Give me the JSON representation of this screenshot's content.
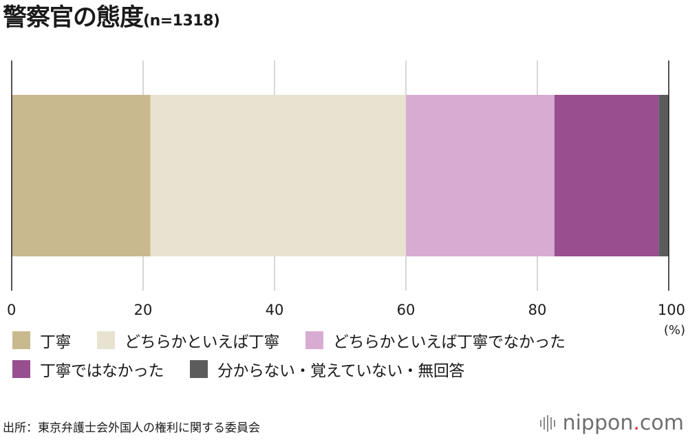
{
  "title": {
    "main": "警察官の態度",
    "n": "(n=1318)"
  },
  "chart_data": {
    "type": "bar",
    "orientation": "horizontal-stacked",
    "xlim": [
      0,
      100
    ],
    "x_ticks": [
      "0",
      "20",
      "40",
      "60",
      "80",
      "100"
    ],
    "x_unit": "(%)",
    "grid": true,
    "series": [
      {
        "name": "丁寧",
        "value": 21.1,
        "color": "#c9b98f"
      },
      {
        "name": "どちらかといえば丁寧",
        "value": 38.9,
        "color": "#e8e2d0"
      },
      {
        "name": "どちらかといえば丁寧でなかった",
        "value": 22.6,
        "color": "#d8abd2"
      },
      {
        "name": "丁寧ではなかった",
        "value": 15.9,
        "color": "#984e8f"
      },
      {
        "name": "分からない・覚えていない・無回答",
        "value": 1.5,
        "color": "#5c5c5c"
      }
    ],
    "legend_position": "bottom"
  },
  "legend": {
    "rows": [
      [
        0,
        1,
        2
      ],
      [
        3,
        4
      ]
    ]
  },
  "source": "出所：東京弁護士会外国人の権利に関する委員会",
  "logo": {
    "text_main": "nippon",
    "text_dot": ".",
    "text_tail": "com"
  }
}
